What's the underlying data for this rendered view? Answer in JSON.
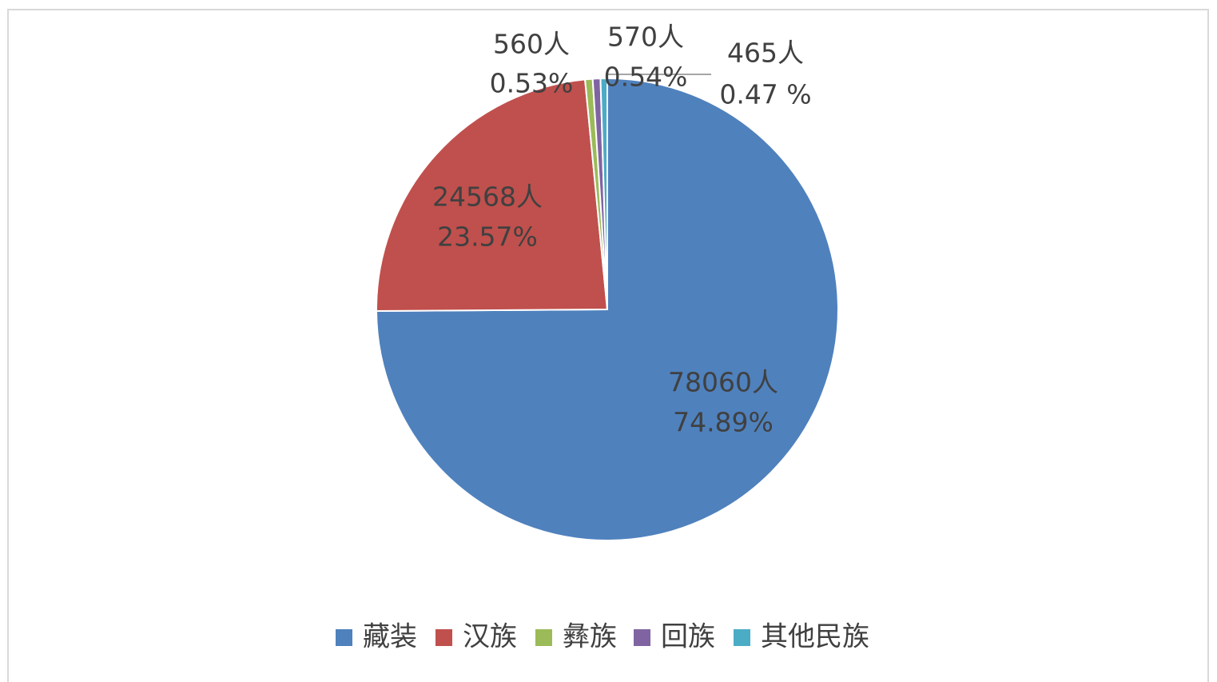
{
  "chart_data": {
    "type": "pie",
    "categories": [
      "藏装",
      "汉族",
      "彝族",
      "回族",
      "其他民族"
    ],
    "values": [
      78060,
      24568,
      560,
      570,
      465
    ],
    "value_labels": [
      "78060人",
      "24568人",
      "560人",
      "570人",
      "465人"
    ],
    "percentages": [
      74.89,
      23.57,
      0.53,
      0.54,
      0.47
    ],
    "percentage_labels": [
      "74.89%",
      "23.57%",
      "0.53%",
      "0.54%",
      "0.47 %"
    ],
    "colors": [
      "#4f81bd",
      "#c0504d",
      "#9bbb59",
      "#8064a2",
      "#4bacc6"
    ],
    "legend": "bottom"
  }
}
